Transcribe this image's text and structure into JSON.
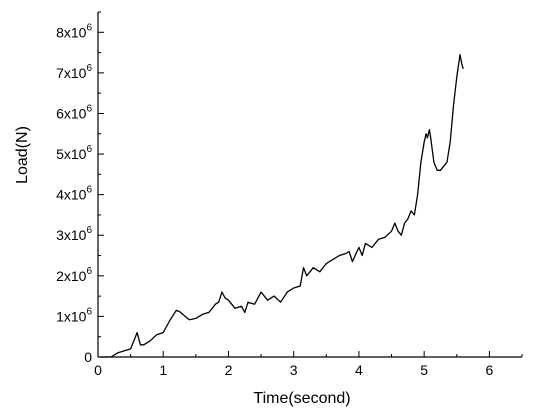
{
  "chart_data": {
    "type": "line",
    "title": "",
    "xlabel": "Time(second)",
    "ylabel": "Load(N)",
    "xlim": [
      0,
      6.5
    ],
    "ylim": [
      0,
      8500000
    ],
    "grid": false,
    "legend": "none",
    "x_ticks": [
      0,
      1,
      2,
      3,
      4,
      5,
      6
    ],
    "x_tick_labels": [
      "0",
      "1",
      "2",
      "3",
      "4",
      "5",
      "6"
    ],
    "y_ticks": [
      {
        "value": 0,
        "base": "0",
        "exp": ""
      },
      {
        "value": 1000000,
        "base": "1x10",
        "exp": "6"
      },
      {
        "value": 2000000,
        "base": "2x10",
        "exp": "6"
      },
      {
        "value": 3000000,
        "base": "3x10",
        "exp": "6"
      },
      {
        "value": 4000000,
        "base": "4x10",
        "exp": "6"
      },
      {
        "value": 5000000,
        "base": "5x10",
        "exp": "6"
      },
      {
        "value": 6000000,
        "base": "6x10",
        "exp": "6"
      },
      {
        "value": 7000000,
        "base": "7x10",
        "exp": "6"
      },
      {
        "value": 8000000,
        "base": "8x10",
        "exp": "6"
      }
    ],
    "series": [
      {
        "color": "#000000",
        "x": [
          0.05,
          0.1,
          0.2,
          0.3,
          0.4,
          0.5,
          0.55,
          0.6,
          0.65,
          0.7,
          0.8,
          0.9,
          1.0,
          1.1,
          1.2,
          1.25,
          1.3,
          1.4,
          1.5,
          1.6,
          1.7,
          1.75,
          1.8,
          1.85,
          1.9,
          1.95,
          2.0,
          2.1,
          2.2,
          2.25,
          2.3,
          2.4,
          2.5,
          2.6,
          2.7,
          2.8,
          2.9,
          3.0,
          3.1,
          3.15,
          3.2,
          3.3,
          3.4,
          3.5,
          3.6,
          3.7,
          3.8,
          3.85,
          3.9,
          4.0,
          4.05,
          4.1,
          4.2,
          4.3,
          4.4,
          4.5,
          4.55,
          4.6,
          4.65,
          4.7,
          4.75,
          4.8,
          4.85,
          4.9,
          4.95,
          5.0,
          5.03,
          5.05,
          5.08,
          5.1,
          5.15,
          5.2,
          5.25,
          5.3,
          5.35,
          5.4,
          5.45,
          5.5,
          5.55,
          5.58,
          5.6
        ],
        "y": [
          0,
          0,
          0,
          100000,
          150000,
          200000,
          400000,
          600000,
          300000,
          300000,
          400000,
          550000,
          600000,
          900000,
          1150000,
          1120000,
          1050000,
          920000,
          950000,
          1050000,
          1100000,
          1200000,
          1300000,
          1350000,
          1600000,
          1450000,
          1400000,
          1200000,
          1250000,
          1100000,
          1350000,
          1300000,
          1600000,
          1400000,
          1500000,
          1350000,
          1600000,
          1700000,
          1750000,
          2200000,
          2000000,
          2200000,
          2100000,
          2300000,
          2400000,
          2500000,
          2550000,
          2600000,
          2350000,
          2700000,
          2500000,
          2800000,
          2700000,
          2900000,
          2950000,
          3100000,
          3300000,
          3100000,
          3000000,
          3300000,
          3400000,
          3600000,
          3500000,
          4000000,
          4800000,
          5300000,
          5500000,
          5400000,
          5600000,
          5400000,
          4800000,
          4600000,
          4600000,
          4700000,
          4800000,
          5300000,
          6200000,
          6900000,
          7450000,
          7200000,
          7100000
        ]
      }
    ]
  }
}
